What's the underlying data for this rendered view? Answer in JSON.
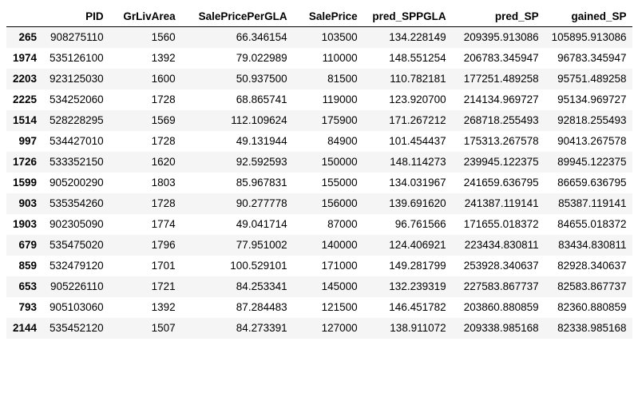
{
  "table": {
    "index_header": "",
    "columns": [
      "PID",
      "GrLivArea",
      "SalePricePerGLA",
      "SalePrice",
      "pred_SPPGLA",
      "pred_SP",
      "gained_SP"
    ],
    "rows": [
      {
        "index": "265",
        "cells": [
          "908275110",
          "1560",
          "66.346154",
          "103500",
          "134.228149",
          "209395.913086",
          "105895.913086"
        ]
      },
      {
        "index": "1974",
        "cells": [
          "535126100",
          "1392",
          "79.022989",
          "110000",
          "148.551254",
          "206783.345947",
          "96783.345947"
        ]
      },
      {
        "index": "2203",
        "cells": [
          "923125030",
          "1600",
          "50.937500",
          "81500",
          "110.782181",
          "177251.489258",
          "95751.489258"
        ]
      },
      {
        "index": "2225",
        "cells": [
          "534252060",
          "1728",
          "68.865741",
          "119000",
          "123.920700",
          "214134.969727",
          "95134.969727"
        ]
      },
      {
        "index": "1514",
        "cells": [
          "528228295",
          "1569",
          "112.109624",
          "175900",
          "171.267212",
          "268718.255493",
          "92818.255493"
        ]
      },
      {
        "index": "997",
        "cells": [
          "534427010",
          "1728",
          "49.131944",
          "84900",
          "101.454437",
          "175313.267578",
          "90413.267578"
        ]
      },
      {
        "index": "1726",
        "cells": [
          "533352150",
          "1620",
          "92.592593",
          "150000",
          "148.114273",
          "239945.122375",
          "89945.122375"
        ]
      },
      {
        "index": "1599",
        "cells": [
          "905200290",
          "1803",
          "85.967831",
          "155000",
          "134.031967",
          "241659.636795",
          "86659.636795"
        ]
      },
      {
        "index": "903",
        "cells": [
          "535354260",
          "1728",
          "90.277778",
          "156000",
          "139.691620",
          "241387.119141",
          "85387.119141"
        ]
      },
      {
        "index": "1903",
        "cells": [
          "902305090",
          "1774",
          "49.041714",
          "87000",
          "96.761566",
          "171655.018372",
          "84655.018372"
        ]
      },
      {
        "index": "679",
        "cells": [
          "535475020",
          "1796",
          "77.951002",
          "140000",
          "124.406921",
          "223434.830811",
          "83434.830811"
        ]
      },
      {
        "index": "859",
        "cells": [
          "532479120",
          "1701",
          "100.529101",
          "171000",
          "149.281799",
          "253928.340637",
          "82928.340637"
        ]
      },
      {
        "index": "653",
        "cells": [
          "905226110",
          "1721",
          "84.253341",
          "145000",
          "132.239319",
          "227583.867737",
          "82583.867737"
        ]
      },
      {
        "index": "793",
        "cells": [
          "905103060",
          "1392",
          "87.284483",
          "121500",
          "146.451782",
          "203860.880859",
          "82360.880859"
        ]
      },
      {
        "index": "2144",
        "cells": [
          "535452120",
          "1507",
          "84.273391",
          "127000",
          "138.911072",
          "209338.985168",
          "82338.985168"
        ]
      }
    ]
  }
}
